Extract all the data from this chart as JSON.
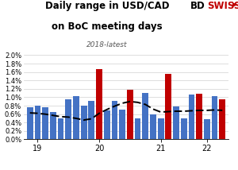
{
  "title_line1": "Daily range in USD/CAD",
  "title_line2": "on BoC meeting days",
  "subtitle": "2018-latest",
  "ylim": [
    0.0,
    0.021
  ],
  "yticks": [
    0.0,
    0.002,
    0.004,
    0.006,
    0.008,
    0.01,
    0.012,
    0.014,
    0.016,
    0.018,
    0.02
  ],
  "ytick_labels": [
    "0.0%",
    "0.2%",
    "0.4%",
    "0.6%",
    "0.8%",
    "1.0%",
    "1.2%",
    "1.4%",
    "1.6%",
    "1.8%",
    "2.0%"
  ],
  "bar_values": [
    0.0076,
    0.0081,
    0.0076,
    0.0065,
    0.005,
    0.0095,
    0.0102,
    0.0081,
    0.0091,
    0.0167,
    0.0068,
    0.0091,
    0.007,
    0.0117,
    0.005,
    0.011,
    0.006,
    0.005,
    0.0155,
    0.0079,
    0.005,
    0.0107,
    0.0108,
    0.0048,
    0.0103,
    0.0095
  ],
  "bar_colors": [
    "#4472c4",
    "#4472c4",
    "#4472c4",
    "#4472c4",
    "#4472c4",
    "#4472c4",
    "#4472c4",
    "#4472c4",
    "#4472c4",
    "#c00000",
    "#4472c4",
    "#4472c4",
    "#4472c4",
    "#c00000",
    "#4472c4",
    "#4472c4",
    "#4472c4",
    "#4472c4",
    "#c00000",
    "#4472c4",
    "#4472c4",
    "#4472c4",
    "#c00000",
    "#4472c4",
    "#4472c4",
    "#c00000"
  ],
  "moving_avg": [
    0.0063,
    0.0062,
    0.006,
    0.0057,
    0.0054,
    0.0053,
    0.005,
    0.0046,
    0.0049,
    0.0062,
    0.0071,
    0.0079,
    0.0086,
    0.009,
    0.0088,
    0.0083,
    0.0072,
    0.0065,
    0.0066,
    0.0067,
    0.0067,
    0.0068,
    0.0069,
    0.0069,
    0.007,
    0.0069
  ],
  "xtick_positions": [
    2,
    10,
    18,
    24
  ],
  "xtick_labels": [
    "19",
    "20",
    "21",
    "22"
  ],
  "bg_color": "#ffffff",
  "grid_color": "#d0d0d0",
  "bar_blue": "#4472c4",
  "bar_red": "#c00000",
  "avg_color": "#000000",
  "title_color": "#000000",
  "subtitle_color": "#595959",
  "logo_bd_color": "#000000",
  "logo_swiss_color": "#c00000"
}
